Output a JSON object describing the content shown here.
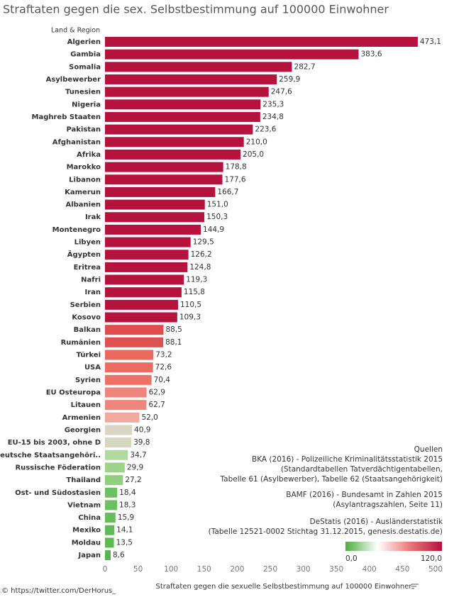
{
  "chart_data": {
    "type": "barh",
    "title": "Straftaten gegen die sex. Selbstbestimmung auf 100000 Einwohner",
    "y_label": "Land & Region",
    "x_label": "Straftaten gegen die sexuelle Selbstbestimmung auf 100000 Einwohner",
    "credit": "© https://twitter.com/DerHorus_",
    "categories": [
      "Algerien",
      "Gambia",
      "Somalia",
      "Asylbewerber",
      "Tunesien",
      "Nigeria",
      "Maghreb Staaten",
      "Pakistan",
      "Afghanistan",
      "Afrika",
      "Marokko",
      "Libanon",
      "Kamerun",
      "Albanien",
      "Irak",
      "Montenegro",
      "Libyen",
      "Ägypten",
      "Eritrea",
      "Nafri",
      "Iran",
      "Serbien",
      "Kosovo",
      "Balkan",
      "Rumänien",
      "Türkei",
      "USA",
      "Syrien",
      "EU Osteuropa",
      "Litauen",
      "Armenien",
      "Georgien",
      "EU-15 bis 2003, ohne D",
      "Deutsche Staatsangehöri..",
      "Russische Föderation",
      "Thailand",
      "Ost- und Südostasien",
      "Vietnam",
      "China",
      "Mexiko",
      "Moldau",
      "Japan"
    ],
    "values": [
      473.1,
      383.6,
      282.7,
      259.9,
      247.6,
      235.3,
      234.8,
      223.6,
      210.0,
      205.0,
      178.8,
      177.6,
      166.7,
      151.0,
      150.3,
      144.9,
      129.5,
      126.2,
      124.8,
      119.3,
      115.8,
      110.5,
      109.3,
      88.5,
      88.1,
      73.2,
      72.6,
      70.4,
      62.9,
      62.7,
      52.0,
      40.9,
      39.8,
      34.7,
      29.9,
      27.2,
      18.4,
      18.3,
      15.9,
      14.1,
      13.5,
      8.6
    ],
    "value_labels": [
      "473,1",
      "383,6",
      "282,7",
      "259,9",
      "247,6",
      "235,3",
      "234,8",
      "223,6",
      "210,0",
      "205,0",
      "178,8",
      "177,6",
      "166,7",
      "151,0",
      "150,3",
      "144,9",
      "129,5",
      "126,2",
      "124,8",
      "119,3",
      "115,8",
      "110,5",
      "109,3",
      "88,5",
      "88,1",
      "73,2",
      "72,6",
      "70,4",
      "62,9",
      "62,7",
      "52,0",
      "40,9",
      "39,8",
      "34,7",
      "29,9",
      "27,2",
      "18,4",
      "18,3",
      "15,9",
      "14,1",
      "13,5",
      "8,6"
    ],
    "colors": [
      "#b5123e",
      "#b5123e",
      "#b5123e",
      "#b5123e",
      "#b5123e",
      "#b5123e",
      "#b5123e",
      "#b5123e",
      "#b5123e",
      "#b5123e",
      "#b5123e",
      "#b5123e",
      "#b5123e",
      "#b5123e",
      "#b5123e",
      "#b5123e",
      "#b5123e",
      "#b5123e",
      "#b5123e",
      "#b5123e",
      "#b5123e",
      "#b5123e",
      "#b5123e",
      "#e04b4b",
      "#e15050",
      "#ea6a60",
      "#eb6d62",
      "#ec7166",
      "#ef857a",
      "#ef867b",
      "#f2a89e",
      "#d9d5c4",
      "#d4d8c0",
      "#b2d9a0",
      "#9dd38a",
      "#8fcf7d",
      "#6dc062",
      "#6dc062",
      "#66bd5c",
      "#60ba57",
      "#5eb955",
      "#56b54e"
    ],
    "xlim": [
      0,
      500
    ],
    "xticks": [
      0,
      50,
      100,
      150,
      200,
      250,
      300,
      350,
      400,
      450,
      500
    ],
    "annotations": [
      "Quellen",
      "BKA (2016) - Polizeiliche Kriminalitätsstatistik 2015",
      "(Standardtabellen Tatverdächtigentabellen,",
      "Tabelle 61 (Asylbewerber), Tabelle 62 (Staatsangehörigkeit)",
      "BAMF (2016) - Bundesamt in Zahlen 2015",
      "(Asylantragszahlen, Seite 11)",
      "DeStatis (2016) -  Ausländerstatistik",
      "(Tabelle 12521-0002 Stichtag 31.12.2015,  genesis.destatis.de)"
    ],
    "color_legend": {
      "colors": [
        "#4dac3e",
        "#ffffff",
        "#e9797a",
        "#b5123e"
      ],
      "min": {
        "value": 0,
        "label": "0,0"
      },
      "max": {
        "value": 120,
        "label": "120,0"
      }
    }
  }
}
